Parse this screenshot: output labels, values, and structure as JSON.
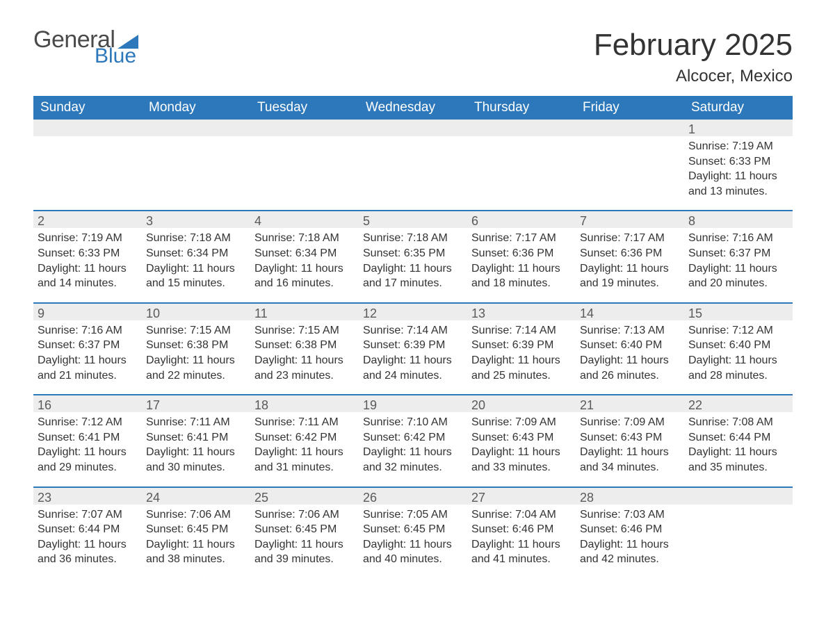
{
  "branding": {
    "word1": "General",
    "word2": "Blue",
    "flag_color": "#2d78bb",
    "text_gray": "#4a4a4a"
  },
  "header": {
    "month_title": "February 2025",
    "location": "Alcocer, Mexico"
  },
  "colors": {
    "header_bar": "#2d78bb",
    "header_text": "#ffffff",
    "daynum_band": "#ededed",
    "week_divider": "#2d78bb",
    "body_text": "#333333",
    "background": "#ffffff"
  },
  "typography": {
    "title_fontsize": 44,
    "location_fontsize": 24,
    "dow_fontsize": 19,
    "daynum_fontsize": 18,
    "body_fontsize": 16
  },
  "days_of_week": [
    "Sunday",
    "Monday",
    "Tuesday",
    "Wednesday",
    "Thursday",
    "Friday",
    "Saturday"
  ],
  "labels": {
    "sunrise": "Sunrise:",
    "sunset": "Sunset:",
    "daylight": "Daylight:"
  },
  "weeks": [
    [
      {
        "blank": true
      },
      {
        "blank": true
      },
      {
        "blank": true
      },
      {
        "blank": true
      },
      {
        "blank": true
      },
      {
        "blank": true
      },
      {
        "n": "1",
        "sunrise": "7:19 AM",
        "sunset": "6:33 PM",
        "daylight": "11 hours and 13 minutes."
      }
    ],
    [
      {
        "n": "2",
        "sunrise": "7:19 AM",
        "sunset": "6:33 PM",
        "daylight": "11 hours and 14 minutes."
      },
      {
        "n": "3",
        "sunrise": "7:18 AM",
        "sunset": "6:34 PM",
        "daylight": "11 hours and 15 minutes."
      },
      {
        "n": "4",
        "sunrise": "7:18 AM",
        "sunset": "6:34 PM",
        "daylight": "11 hours and 16 minutes."
      },
      {
        "n": "5",
        "sunrise": "7:18 AM",
        "sunset": "6:35 PM",
        "daylight": "11 hours and 17 minutes."
      },
      {
        "n": "6",
        "sunrise": "7:17 AM",
        "sunset": "6:36 PM",
        "daylight": "11 hours and 18 minutes."
      },
      {
        "n": "7",
        "sunrise": "7:17 AM",
        "sunset": "6:36 PM",
        "daylight": "11 hours and 19 minutes."
      },
      {
        "n": "8",
        "sunrise": "7:16 AM",
        "sunset": "6:37 PM",
        "daylight": "11 hours and 20 minutes."
      }
    ],
    [
      {
        "n": "9",
        "sunrise": "7:16 AM",
        "sunset": "6:37 PM",
        "daylight": "11 hours and 21 minutes."
      },
      {
        "n": "10",
        "sunrise": "7:15 AM",
        "sunset": "6:38 PM",
        "daylight": "11 hours and 22 minutes."
      },
      {
        "n": "11",
        "sunrise": "7:15 AM",
        "sunset": "6:38 PM",
        "daylight": "11 hours and 23 minutes."
      },
      {
        "n": "12",
        "sunrise": "7:14 AM",
        "sunset": "6:39 PM",
        "daylight": "11 hours and 24 minutes."
      },
      {
        "n": "13",
        "sunrise": "7:14 AM",
        "sunset": "6:39 PM",
        "daylight": "11 hours and 25 minutes."
      },
      {
        "n": "14",
        "sunrise": "7:13 AM",
        "sunset": "6:40 PM",
        "daylight": "11 hours and 26 minutes."
      },
      {
        "n": "15",
        "sunrise": "7:12 AM",
        "sunset": "6:40 PM",
        "daylight": "11 hours and 28 minutes."
      }
    ],
    [
      {
        "n": "16",
        "sunrise": "7:12 AM",
        "sunset": "6:41 PM",
        "daylight": "11 hours and 29 minutes."
      },
      {
        "n": "17",
        "sunrise": "7:11 AM",
        "sunset": "6:41 PM",
        "daylight": "11 hours and 30 minutes."
      },
      {
        "n": "18",
        "sunrise": "7:11 AM",
        "sunset": "6:42 PM",
        "daylight": "11 hours and 31 minutes."
      },
      {
        "n": "19",
        "sunrise": "7:10 AM",
        "sunset": "6:42 PM",
        "daylight": "11 hours and 32 minutes."
      },
      {
        "n": "20",
        "sunrise": "7:09 AM",
        "sunset": "6:43 PM",
        "daylight": "11 hours and 33 minutes."
      },
      {
        "n": "21",
        "sunrise": "7:09 AM",
        "sunset": "6:43 PM",
        "daylight": "11 hours and 34 minutes."
      },
      {
        "n": "22",
        "sunrise": "7:08 AM",
        "sunset": "6:44 PM",
        "daylight": "11 hours and 35 minutes."
      }
    ],
    [
      {
        "n": "23",
        "sunrise": "7:07 AM",
        "sunset": "6:44 PM",
        "daylight": "11 hours and 36 minutes."
      },
      {
        "n": "24",
        "sunrise": "7:06 AM",
        "sunset": "6:45 PM",
        "daylight": "11 hours and 38 minutes."
      },
      {
        "n": "25",
        "sunrise": "7:06 AM",
        "sunset": "6:45 PM",
        "daylight": "11 hours and 39 minutes."
      },
      {
        "n": "26",
        "sunrise": "7:05 AM",
        "sunset": "6:45 PM",
        "daylight": "11 hours and 40 minutes."
      },
      {
        "n": "27",
        "sunrise": "7:04 AM",
        "sunset": "6:46 PM",
        "daylight": "11 hours and 41 minutes."
      },
      {
        "n": "28",
        "sunrise": "7:03 AM",
        "sunset": "6:46 PM",
        "daylight": "11 hours and 42 minutes."
      },
      {
        "blank": true
      }
    ]
  ]
}
